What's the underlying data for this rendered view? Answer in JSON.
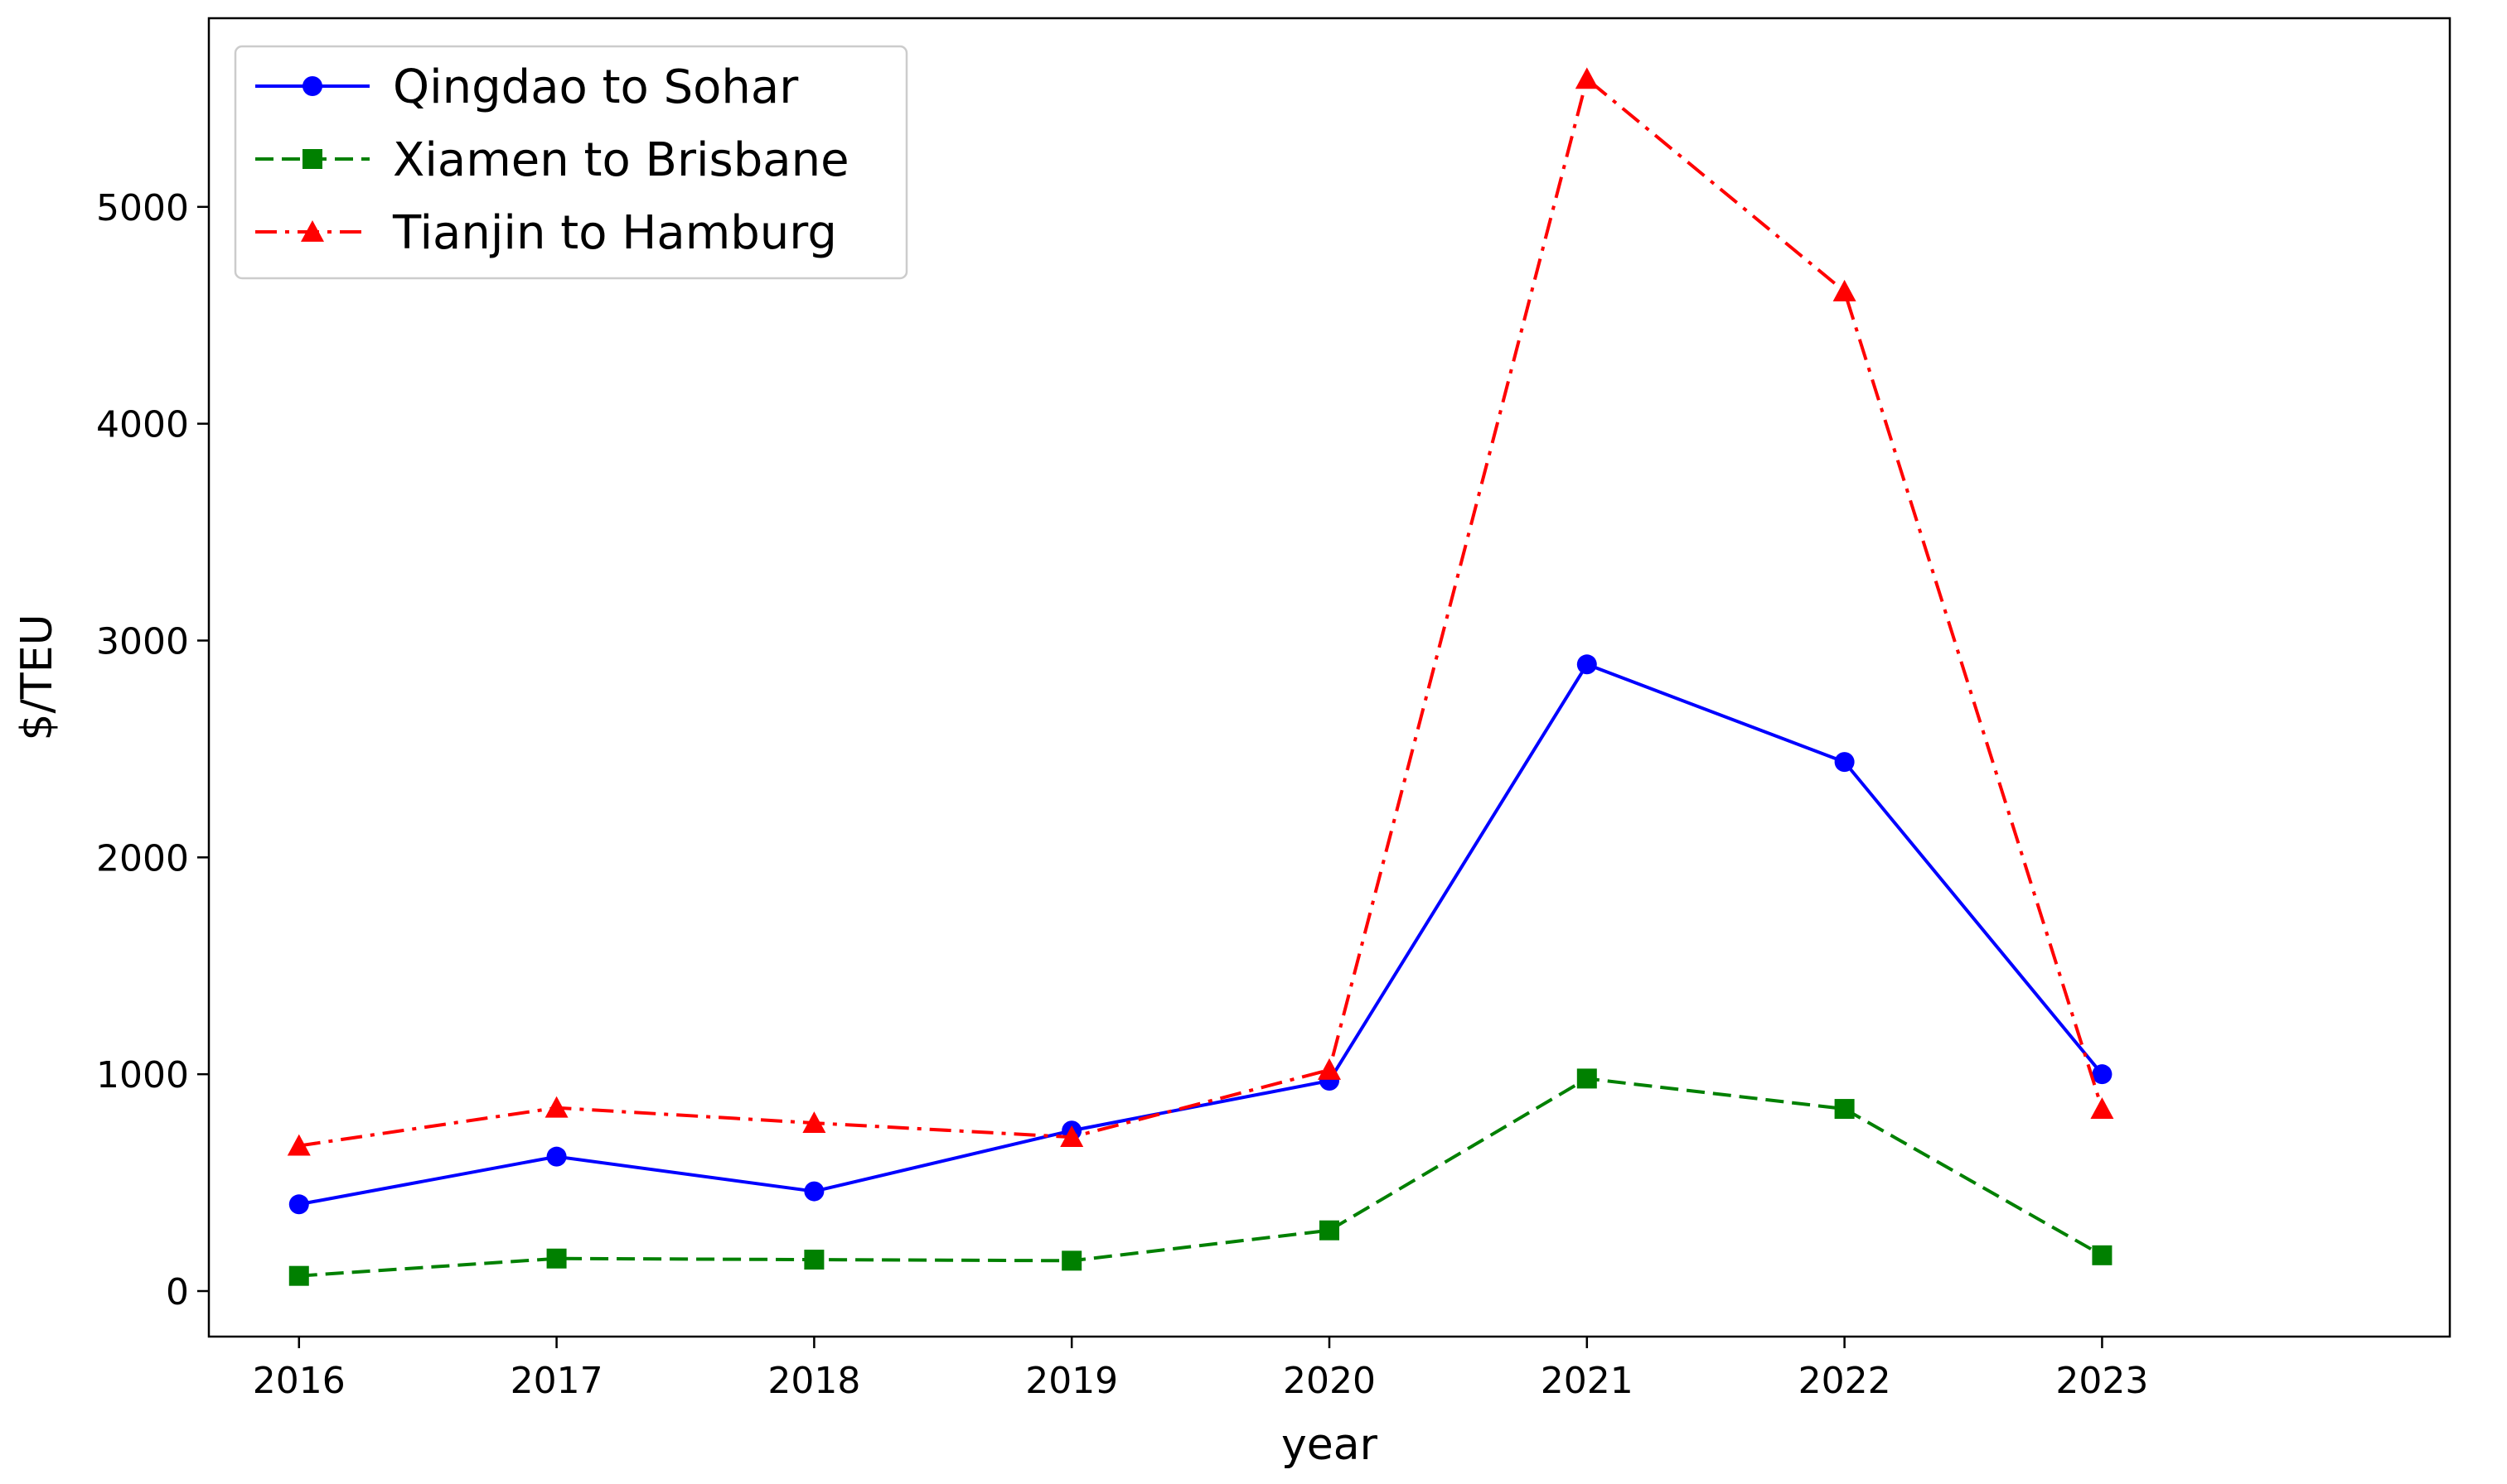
{
  "chart_data": {
    "type": "line",
    "title": "",
    "xlabel": "year",
    "ylabel": "$/TEU",
    "x": [
      2016,
      2017,
      2018,
      2019,
      2020,
      2021,
      2022,
      2023
    ],
    "xlim": [
      2015.65,
      2024.35
    ],
    "ylim": [
      -210,
      5870
    ],
    "yticks": [
      0,
      1000,
      2000,
      3000,
      4000,
      5000
    ],
    "grid": false,
    "legend_position": "top-left",
    "series": [
      {
        "name": "Qingdao to Sohar",
        "color": "#0000ff",
        "marker": "circle",
        "linestyle": "solid",
        "values": [
          400,
          620,
          460,
          740,
          970,
          2890,
          2440,
          1000
        ]
      },
      {
        "name": "Xiamen to Brisbane",
        "color": "#008000",
        "marker": "square",
        "linestyle": "dashed",
        "values": [
          70,
          150,
          145,
          140,
          280,
          980,
          840,
          165
        ]
      },
      {
        "name": "Tianjin to Hamburg",
        "color": "#ff0000",
        "marker": "triangle",
        "linestyle": "dashdot",
        "values": [
          670,
          845,
          775,
          710,
          1020,
          5590,
          4610,
          840
        ]
      }
    ]
  }
}
